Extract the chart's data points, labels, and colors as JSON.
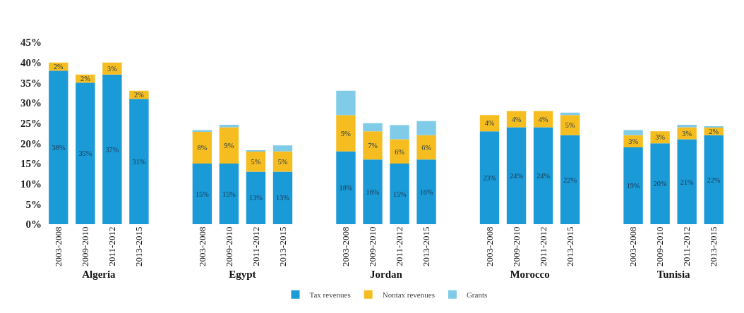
{
  "chart_data": [
    {
      "type": "bar",
      "stacked": true,
      "xlabel": "Algeria",
      "categories": [
        "2003-2008",
        "2009-2010",
        "2011-2012",
        "2013-2015"
      ],
      "ylim": [
        0,
        45
      ],
      "yticks": [
        {
          "value": 0,
          "label": "0%"
        },
        {
          "value": 5,
          "label": "5%"
        },
        {
          "value": 10,
          "label": "10%"
        },
        {
          "value": 15,
          "label": "15%"
        },
        {
          "value": 20,
          "label": "20%"
        },
        {
          "value": 25,
          "label": "25%"
        },
        {
          "value": 30,
          "label": "30%"
        },
        {
          "value": 35,
          "label": "35%"
        },
        {
          "value": 40,
          "label": "40%"
        },
        {
          "value": 45,
          "label": "45%"
        }
      ],
      "legend": "bottom",
      "series": [
        {
          "name": "Tax revenues",
          "color": "#1a9ad6",
          "values": [
            38,
            35,
            37,
            31
          ],
          "value_labels": [
            "38%",
            "35%",
            "37%",
            "31%"
          ]
        },
        {
          "name": "Nontax revenues",
          "color": "#f5bd1f",
          "values": [
            2,
            2,
            3,
            2
          ],
          "value_labels": [
            "2%",
            "2%",
            "3%",
            "2%"
          ]
        },
        {
          "name": "Grants",
          "color": "#7fcbe8",
          "values": [
            0,
            0,
            0,
            0
          ]
        }
      ]
    },
    {
      "type": "bar",
      "stacked": true,
      "xlabel": "Egypt",
      "categories": [
        "2003-2008",
        "2009-2010",
        "2011-2012",
        "2013-2015"
      ],
      "ylim": [
        0,
        45
      ],
      "tick_labels": "x",
      "series": [
        {
          "color": "#1a9ad6",
          "values": [
            15,
            15,
            13,
            13
          ],
          "value_labels": [
            "15%",
            "15%",
            "13%",
            "13%"
          ]
        },
        {
          "color": "#f5bd1f",
          "values": [
            8,
            9,
            5,
            5
          ],
          "value_labels": [
            "8%",
            "9%",
            "5%",
            "5%"
          ]
        },
        {
          "color": "#7fcbe8",
          "values": [
            0.3,
            0.6,
            0.3,
            1.5
          ]
        }
      ]
    },
    {
      "type": "bar",
      "stacked": true,
      "xlabel": "Jordan",
      "categories": [
        "2003-2008",
        "2009-2010",
        "2011-2012",
        "2013-2015"
      ],
      "ylim": [
        0,
        45
      ],
      "tick_labels": "x",
      "series": [
        {
          "color": "#1a9ad6",
          "values": [
            18,
            16,
            15,
            16
          ],
          "value_labels": [
            "18%",
            "16%",
            "15%",
            "16%"
          ]
        },
        {
          "color": "#f5bd1f",
          "values": [
            9,
            7,
            6,
            6
          ],
          "value_labels": [
            "9%",
            "7%",
            "6%",
            "6%"
          ]
        },
        {
          "color": "#7fcbe8",
          "values": [
            6,
            2,
            3.5,
            3.5
          ]
        }
      ]
    },
    {
      "type": "bar",
      "stacked": true,
      "xlabel": "Morocco",
      "categories": [
        "2003-2008",
        "2009-2010",
        "2011-2012",
        "2013-2015"
      ],
      "ylim": [
        0,
        45
      ],
      "tick_labels": "x",
      "series": [
        {
          "color": "#1a9ad6",
          "values": [
            23,
            24,
            24,
            22
          ],
          "value_labels": [
            "23%",
            "24%",
            "24%",
            "22%"
          ]
        },
        {
          "color": "#f5bd1f",
          "values": [
            4,
            4,
            4,
            5
          ],
          "value_labels": [
            "4%",
            "4%",
            "4%",
            "5%"
          ]
        },
        {
          "color": "#7fcbe8",
          "values": [
            0,
            0,
            0,
            0.6
          ]
        }
      ]
    },
    {
      "type": "bar",
      "stacked": true,
      "xlabel": "Tunisia",
      "categories": [
        "2003-2008",
        "2009-2010",
        "2011-2012",
        "2013-2015"
      ],
      "ylim": [
        0,
        45
      ],
      "tick_labels": "x",
      "series": [
        {
          "color": "#1a9ad6",
          "values": [
            19,
            20,
            21,
            22
          ],
          "value_labels": [
            "19%",
            "20%",
            "21%",
            "22%"
          ]
        },
        {
          "color": "#f5bd1f",
          "values": [
            3,
            3,
            3,
            2
          ],
          "value_labels": [
            "3%",
            "3%",
            "3%",
            "2%"
          ]
        },
        {
          "color": "#7fcbe8",
          "values": [
            1.3,
            0,
            0.6,
            0.2
          ]
        }
      ]
    }
  ]
}
